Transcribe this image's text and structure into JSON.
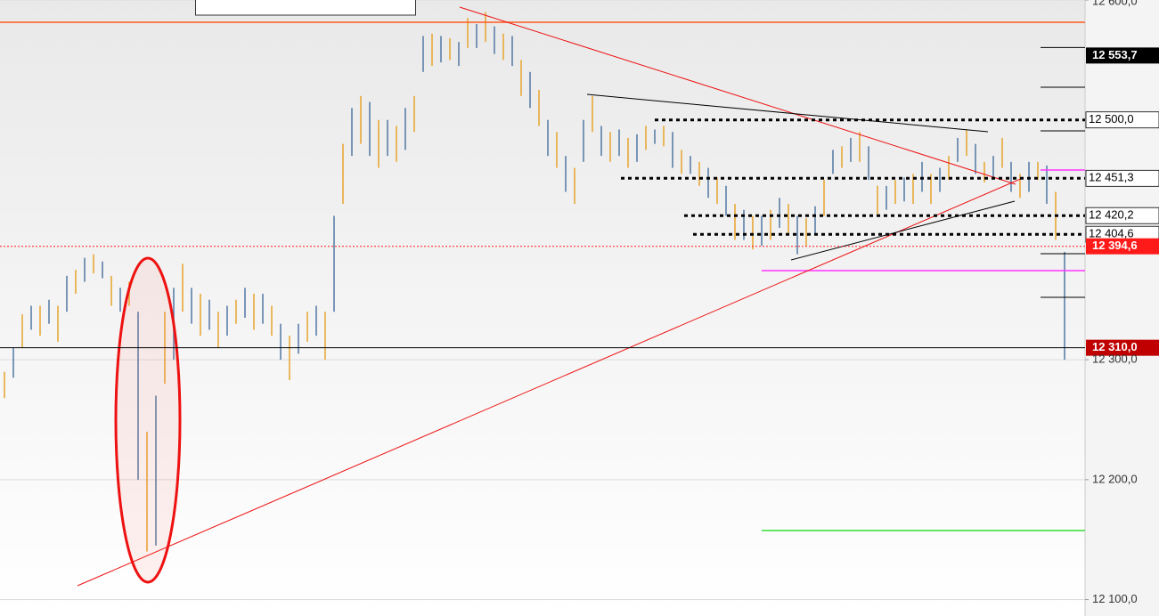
{
  "chart_data": {
    "type": "ohlc",
    "ylim": [
      12086.3,
      12600
    ],
    "yticks": [
      {
        "value": 12600,
        "label": "12 600,0"
      },
      {
        "value": 12300,
        "label": "12 300,0"
      },
      {
        "value": 12200,
        "label": "12 200,0"
      },
      {
        "value": 12100,
        "label": "12 100,0"
      }
    ],
    "grid": true,
    "series": [
      {
        "colors": [
          "#e8a838",
          "#5b7fa8"
        ],
        "low": [
          12268,
          12285,
          12310,
          12325,
          12320,
          12330,
          12315,
          12340,
          12355,
          12365,
          12372,
          12368,
          12345,
          12340,
          12345,
          12200,
          12140,
          12145,
          12280,
          12300,
          12340,
          12330,
          12320,
          12325,
          12310,
          12320,
          12330,
          12335,
          12325,
          12330,
          12320,
          12300,
          12283,
          12305,
          12315,
          12320,
          12300,
          12340,
          12430,
          12470,
          12480,
          12470,
          12460,
          12470,
          12465,
          12475,
          12490,
          12540,
          12545,
          12548,
          12550,
          12545,
          12560,
          12560,
          12565,
          12555,
          12550,
          12545,
          12520,
          12510,
          12495,
          12470,
          12460,
          12440,
          12430,
          12465,
          12490,
          12470,
          12465,
          12470,
          12460,
          12465,
          12475,
          12480,
          12478,
          12460,
          12455,
          12455,
          12445,
          12435,
          12430,
          12420,
          12400,
          12400,
          12392,
          12395,
          12400,
          12410,
          12405,
          12388,
          12395,
          12405,
          12420,
          12455,
          12460,
          12465,
          12465,
          12450,
          12420,
          12425,
          12430,
          12432,
          12430,
          12440,
          12430,
          12440,
          12450,
          12465,
          12470,
          12455,
          12448,
          12450,
          12460,
          12440,
          12435,
          12440,
          12450,
          12430,
          12400,
          12300
        ],
        "high": [
          12290,
          12310,
          12338,
          12345,
          12345,
          12350,
          12345,
          12370,
          12375,
          12385,
          12388,
          12382,
          12370,
          12360,
          12365,
          12340,
          12240,
          12270,
          12340,
          12360,
          12380,
          12360,
          12355,
          12350,
          12340,
          12345,
          12350,
          12360,
          12355,
          12355,
          12345,
          12330,
          12320,
          12330,
          12340,
          12345,
          12340,
          12420,
          12480,
          12510,
          12520,
          12515,
          12500,
          12500,
          12495,
          12510,
          12520,
          12570,
          12572,
          12570,
          12568,
          12565,
          12585,
          12580,
          12590,
          12578,
          12572,
          12570,
          12550,
          12540,
          12525,
          12500,
          12490,
          12470,
          12460,
          12500,
          12520,
          12495,
          12490,
          12492,
          12485,
          12488,
          12495,
          12492,
          12495,
          12490,
          12475,
          12470,
          12465,
          12460,
          12452,
          12445,
          12430,
          12425,
          12420,
          12420,
          12425,
          12435,
          12430,
          12420,
          12418,
          12428,
          12450,
          12475,
          12478,
          12485,
          12490,
          12478,
          12445,
          12445,
          12450,
          12452,
          12455,
          12465,
          12455,
          12460,
          12470,
          12485,
          12492,
          12480,
          12465,
          12470,
          12485,
          12465,
          12455,
          12465,
          12465,
          12462,
          12440,
          12390
        ]
      }
    ],
    "levels": [
      {
        "value": 12553.7,
        "label": "12 553,7",
        "color": "#000000"
      },
      {
        "value": 12500,
        "label": "12 500,0",
        "color": "#ffffff"
      },
      {
        "value": 12451.3,
        "label": "12 451,3",
        "color": "#ffffff"
      },
      {
        "value": 12420.2,
        "label": "12 420,2",
        "color": "#ffffff"
      },
      {
        "value": 12404.6,
        "label": "12 404,6",
        "color": "#ffffff"
      },
      {
        "value": 12394.6,
        "label": "12 394,6",
        "color": "#ff1a1a"
      },
      {
        "value": 12310,
        "label": "12 310,0",
        "color": "#c00000"
      }
    ]
  }
}
